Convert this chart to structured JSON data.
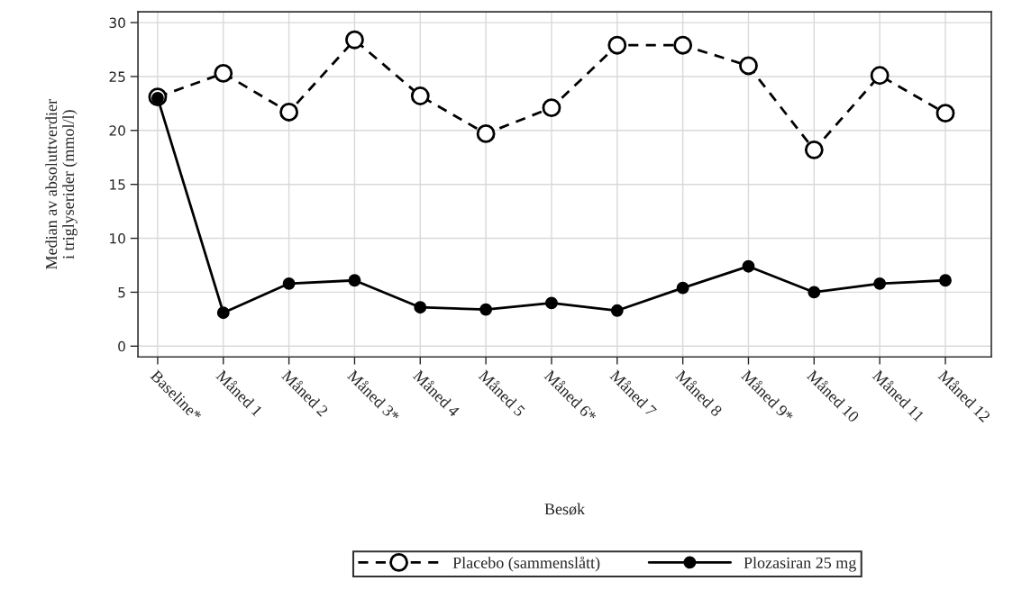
{
  "chart_data": {
    "type": "line",
    "categories": [
      "Baseline*",
      "Måned 1",
      "Måned 2",
      "Måned 3*",
      "Måned 4",
      "Måned 5",
      "Måned 6*",
      "Måned 7",
      "Måned 8",
      "Måned 9*",
      "Måned 10",
      "Måned 11",
      "Måned 12"
    ],
    "series": [
      {
        "name": "Placebo (sammenslått)",
        "color": "#000000",
        "marker": "circle",
        "line_style": "dashed",
        "values": [
          23.1,
          25.3,
          21.7,
          28.4,
          23.2,
          19.7,
          22.1,
          27.9,
          27.9,
          26.0,
          18.2,
          25.1,
          21.6
        ]
      },
      {
        "name": "Plozasiran 25 mg",
        "color": "#000000",
        "marker": "circle",
        "line_style": "solid",
        "values": [
          23.0,
          3.1,
          5.8,
          6.1,
          3.6,
          3.4,
          4.0,
          3.3,
          5.4,
          7.4,
          5.0,
          5.8,
          6.1
        ]
      }
    ],
    "xlabel": "Besøk",
    "ylabel": "Median av absoluttverdier\ni triglyserider (mmol/l)",
    "ylim": [
      -1,
      31
    ],
    "yticks": [
      0,
      5,
      10,
      15,
      20,
      25,
      30
    ],
    "grid": true,
    "legend": "bottom"
  }
}
